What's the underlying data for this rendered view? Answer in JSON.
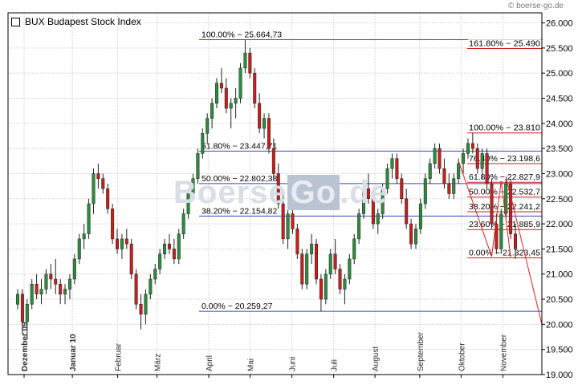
{
  "header": {
    "legend_label": "BUX Budapest Stock Index",
    "source": "boerse-go.de",
    "watermark": [
      "Boerse",
      "Go",
      ".de"
    ]
  },
  "colors": {
    "grid": "#cfcfcf",
    "axis": "#000000",
    "up_candle": "#2e8b3e",
    "down_candle": "#c81e1e",
    "fib_first": "#3548b5",
    "fib_second": "#c81e1e",
    "trendline": "#e02020"
  },
  "chart_data": {
    "type": "candlestick",
    "title": "BUX Budapest Stock Index",
    "ylim": [
      19000,
      26200
    ],
    "y_ticks": [
      "19.000",
      "19.500",
      "20.000",
      "20.500",
      "21.000",
      "21.500",
      "22.000",
      "22.500",
      "23.000",
      "23.500",
      "24.000",
      "24.500",
      "25.000",
      "25.500",
      "26.000"
    ],
    "x_ticks": [
      "Dezember 09",
      "Januar 10",
      "Februar",
      "März",
      "April",
      "Mai",
      "Juni",
      "Juli",
      "August",
      "September",
      "Oktober",
      "November"
    ],
    "grid": true,
    "fib_retracement_1": {
      "levels": [
        {
          "label": "100.00% − 25.664,73",
          "value": 25664.73
        },
        {
          "label": "61.80% − 23.447,71",
          "value": 23447.71
        },
        {
          "label": "50.00% − 22.802,38",
          "value": 22802.38
        },
        {
          "label": "38.20% − 22.154,82",
          "value": 22154.82
        },
        {
          "label": "0.00% − 20.259,27",
          "value": 20259.27
        }
      ]
    },
    "fib_retracement_2": {
      "levels": [
        {
          "label": "161.80% − 25.490",
          "value": 25490
        },
        {
          "label": "100.00% − 23.810",
          "value": 23810
        },
        {
          "label": "76.40% − 23.198,6",
          "value": 23198.6
        },
        {
          "label": "61.80% − 22.827,9",
          "value": 22827.9
        },
        {
          "label": "50.00% − 22.532,7",
          "value": 22532.7
        },
        {
          "label": "38.20% − 22.241,2",
          "value": 22241.2
        },
        {
          "label": "23.60% − 21.885,9",
          "value": 21885.9
        },
        {
          "label": "0.00% − 21.323,45",
          "value": 21323.45
        }
      ]
    },
    "trendline": {
      "from_value": 22950,
      "to_value": 20000
    },
    "series": [
      {
        "ohlc": [
          [
            20400,
            20700,
            20300,
            20600
          ],
          [
            20600,
            20700,
            19800,
            20050
          ],
          [
            20050,
            20500,
            19700,
            20400
          ],
          [
            20400,
            20900,
            20300,
            20800
          ],
          [
            20800,
            21000,
            20500,
            20600
          ],
          [
            20600,
            20900,
            20400,
            20700
          ],
          [
            20700,
            21100,
            20600,
            21000
          ],
          [
            21000,
            21200,
            20700,
            20900
          ],
          [
            20900,
            21300,
            20600,
            20800
          ],
          [
            20800,
            20900,
            20400,
            20600
          ],
          [
            20600,
            20800,
            20400,
            20700
          ],
          [
            20700,
            21000,
            20500,
            20900
          ],
          [
            20900,
            21400,
            20800,
            21300
          ],
          [
            21300,
            21800,
            21200,
            21700
          ],
          [
            21700,
            22000,
            21500,
            21800
          ],
          [
            21800,
            22500,
            21700,
            22400
          ],
          [
            22400,
            23100,
            22200,
            23000
          ],
          [
            23000,
            23200,
            22700,
            22900
          ],
          [
            22900,
            23000,
            22600,
            22700
          ],
          [
            22700,
            22800,
            22200,
            22300
          ],
          [
            22300,
            22400,
            21600,
            21700
          ],
          [
            21700,
            21900,
            21400,
            21500
          ],
          [
            21500,
            21800,
            21300,
            21700
          ],
          [
            21700,
            21900,
            21500,
            21600
          ],
          [
            21600,
            21700,
            20900,
            21000
          ],
          [
            21000,
            21100,
            20300,
            20400
          ],
          [
            20400,
            20600,
            19900,
            20200
          ],
          [
            20200,
            20700,
            20000,
            20600
          ],
          [
            20600,
            21000,
            20500,
            20900
          ],
          [
            20900,
            21200,
            20800,
            21100
          ],
          [
            21100,
            21500,
            21000,
            21400
          ],
          [
            21400,
            21700,
            21300,
            21600
          ],
          [
            21600,
            21800,
            21400,
            21500
          ],
          [
            21500,
            21700,
            21200,
            21300
          ],
          [
            21300,
            21900,
            21200,
            21800
          ],
          [
            21800,
            22300,
            21700,
            22200
          ],
          [
            22200,
            22700,
            22100,
            22600
          ],
          [
            22600,
            23000,
            22500,
            22900
          ],
          [
            22900,
            23500,
            22800,
            23400
          ],
          [
            23400,
            23900,
            23300,
            23800
          ],
          [
            23800,
            24200,
            23600,
            24100
          ],
          [
            24100,
            24500,
            23900,
            24400
          ],
          [
            24400,
            24900,
            24300,
            24800
          ],
          [
            24800,
            25100,
            24600,
            24700
          ],
          [
            24700,
            24900,
            24200,
            24300
          ],
          [
            24300,
            24500,
            23900,
            24400
          ],
          [
            24400,
            24700,
            24100,
            24500
          ],
          [
            24500,
            25200,
            24400,
            25100
          ],
          [
            25100,
            25660,
            25000,
            25400
          ],
          [
            25400,
            25500,
            24900,
            25000
          ],
          [
            25000,
            25100,
            24300,
            24400
          ],
          [
            24400,
            24600,
            23800,
            23900
          ],
          [
            23900,
            24200,
            23700,
            24100
          ],
          [
            24100,
            24200,
            23400,
            23500
          ],
          [
            23500,
            23700,
            22900,
            23000
          ],
          [
            23000,
            23200,
            22300,
            22400
          ],
          [
            22400,
            22600,
            21600,
            21700
          ],
          [
            21700,
            22300,
            21500,
            22200
          ],
          [
            22200,
            22400,
            21800,
            21900
          ],
          [
            21900,
            22000,
            21300,
            21400
          ],
          [
            21400,
            21500,
            20700,
            20800
          ],
          [
            20800,
            21500,
            20700,
            21400
          ],
          [
            21400,
            21800,
            21200,
            21600
          ],
          [
            21600,
            21700,
            20800,
            20900
          ],
          [
            20900,
            21000,
            20260,
            20500
          ],
          [
            20500,
            21100,
            20400,
            21000
          ],
          [
            21000,
            21500,
            20900,
            21400
          ],
          [
            21400,
            21700,
            21000,
            21100
          ],
          [
            21100,
            21200,
            20600,
            20700
          ],
          [
            20700,
            21000,
            20400,
            20900
          ],
          [
            20900,
            21400,
            20800,
            21300
          ],
          [
            21300,
            21800,
            21200,
            21700
          ],
          [
            21700,
            22300,
            21600,
            22200
          ],
          [
            22200,
            22800,
            22100,
            22700
          ],
          [
            22700,
            23000,
            22400,
            22500
          ],
          [
            22500,
            22600,
            21900,
            22000
          ],
          [
            22000,
            22300,
            21800,
            22200
          ],
          [
            22200,
            22800,
            22100,
            22700
          ],
          [
            22700,
            23200,
            22600,
            23100
          ],
          [
            23100,
            23400,
            22900,
            23300
          ],
          [
            23300,
            23400,
            22800,
            22900
          ],
          [
            22900,
            23000,
            22400,
            22500
          ],
          [
            22500,
            22700,
            21900,
            22000
          ],
          [
            22000,
            22100,
            21500,
            21600
          ],
          [
            21600,
            22000,
            21500,
            21900
          ],
          [
            21900,
            22500,
            21800,
            22400
          ],
          [
            22400,
            23000,
            22300,
            22900
          ],
          [
            22900,
            23300,
            22800,
            23200
          ],
          [
            23200,
            23600,
            23100,
            23500
          ],
          [
            23500,
            23600,
            23000,
            23100
          ],
          [
            23100,
            23300,
            22700,
            22800
          ],
          [
            22800,
            23000,
            22500,
            22600
          ],
          [
            22600,
            23000,
            22500,
            22900
          ],
          [
            22900,
            23300,
            22800,
            23200
          ],
          [
            23200,
            23500,
            23000,
            23400
          ],
          [
            23400,
            23700,
            23300,
            23600
          ],
          [
            23600,
            23810,
            23400,
            23500
          ],
          [
            23500,
            23600,
            23000,
            23100
          ],
          [
            23100,
            23500,
            22900,
            23400
          ],
          [
            23400,
            23500,
            22700,
            22800
          ],
          [
            22800,
            22900,
            21900,
            22000
          ],
          [
            22000,
            22200,
            21400,
            21500
          ],
          [
            21500,
            22300,
            21400,
            22200
          ],
          [
            22200,
            22900,
            22100,
            22800
          ],
          [
            22800,
            22900,
            21700,
            21800
          ],
          [
            21800,
            22000,
            21300,
            21500
          ]
        ]
      }
    ]
  }
}
